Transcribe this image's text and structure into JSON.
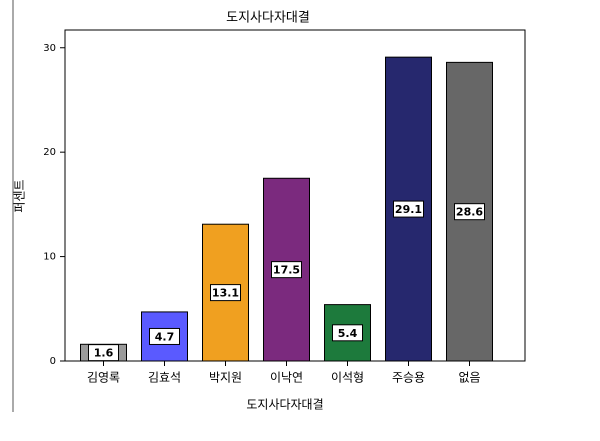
{
  "chart_data": {
    "type": "bar",
    "title": "도지사다자대결",
    "x_label": "도지사다자대결",
    "y_label": "퍼센트",
    "categories": [
      "김영록",
      "김효석",
      "박지원",
      "이낙연",
      "이석형",
      "주승용",
      "없음"
    ],
    "values": [
      1.6,
      4.7,
      13.1,
      17.5,
      5.4,
      29.1,
      28.6
    ],
    "colors": [
      "#9a9a9a",
      "#5a5aff",
      "#f0a020",
      "#7b2a7e",
      "#1d7a3c",
      "#26286e",
      "#676767"
    ],
    "ylim": [
      0,
      31.7
    ],
    "yticks": [
      0,
      10,
      20,
      30
    ]
  }
}
